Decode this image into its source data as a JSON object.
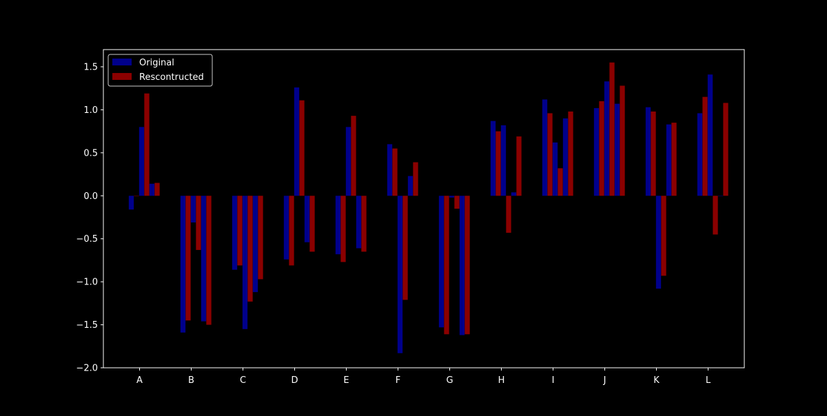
{
  "chart_data": {
    "type": "bar",
    "title": "",
    "xlabel": "",
    "ylabel": "",
    "ylim": [
      -2.0,
      1.7
    ],
    "xlim": [
      -0.7,
      11.7
    ],
    "y_ticks": [
      -2.0,
      -1.5,
      -1.0,
      -0.5,
      0.0,
      0.5,
      1.0,
      1.5
    ],
    "categories": [
      "A",
      "B",
      "C",
      "D",
      "E",
      "F",
      "G",
      "H",
      "I",
      "J",
      "K",
      "L"
    ],
    "bars_per_group": 2,
    "grid": false,
    "legend_position": "top-left",
    "colors": {
      "background": "#000000",
      "axes": "#ffffff",
      "text": "#ffffff",
      "original": "#00008b",
      "reconstructed": "#8b0000"
    },
    "legend": [
      {
        "label": "Original",
        "color": "#00008b"
      },
      {
        "label": "Rescontructed",
        "color": "#8b0000"
      }
    ],
    "series": [
      {
        "name": "Original",
        "color": "#00008b",
        "values": [
          [
            -0.16,
            0.8
          ],
          [
            -1.59,
            -0.31
          ],
          [
            -0.86,
            -1.55
          ],
          [
            -0.74,
            1.26
          ],
          [
            -0.68,
            0.8
          ],
          [
            0.6,
            -1.83
          ],
          [
            -1.53,
            -0.02
          ],
          [
            0.87,
            0.82
          ],
          [
            1.12,
            0.62
          ],
          [
            1.02,
            1.33
          ],
          [
            1.03,
            -1.08
          ],
          [
            0.96,
            1.41
          ]
        ],
        "values_extra": [
          [
            0.14
          ],
          [
            -1.46
          ],
          [
            -1.12
          ],
          [
            -0.54
          ],
          [
            -0.61
          ],
          [
            0.23
          ],
          [
            -1.62
          ],
          [
            0.04
          ],
          [
            0.9
          ],
          [
            1.07
          ],
          [
            0.83
          ],
          [
            0.0
          ]
        ]
      },
      {
        "name": "Rescontructed",
        "color": "#8b0000",
        "values": [
          [
            0.0,
            1.19
          ],
          [
            -1.45,
            -0.63
          ],
          [
            -0.81,
            -1.23
          ],
          [
            -0.81,
            1.11
          ],
          [
            -0.77,
            0.93
          ],
          [
            0.55,
            -1.21
          ],
          [
            -1.61,
            -0.15
          ],
          [
            0.75,
            -0.43
          ],
          [
            0.96,
            0.32
          ],
          [
            1.1,
            1.55
          ],
          [
            0.98,
            -0.93
          ],
          [
            1.15,
            -0.45
          ]
        ],
        "values_extra": [
          [
            0.15
          ],
          [
            -1.5
          ],
          [
            -0.97
          ],
          [
            -0.65
          ],
          [
            -0.65
          ],
          [
            0.39
          ],
          [
            -1.61
          ],
          [
            0.69
          ],
          [
            0.98
          ],
          [
            1.28
          ],
          [
            0.85
          ],
          [
            1.08
          ]
        ]
      }
    ]
  }
}
